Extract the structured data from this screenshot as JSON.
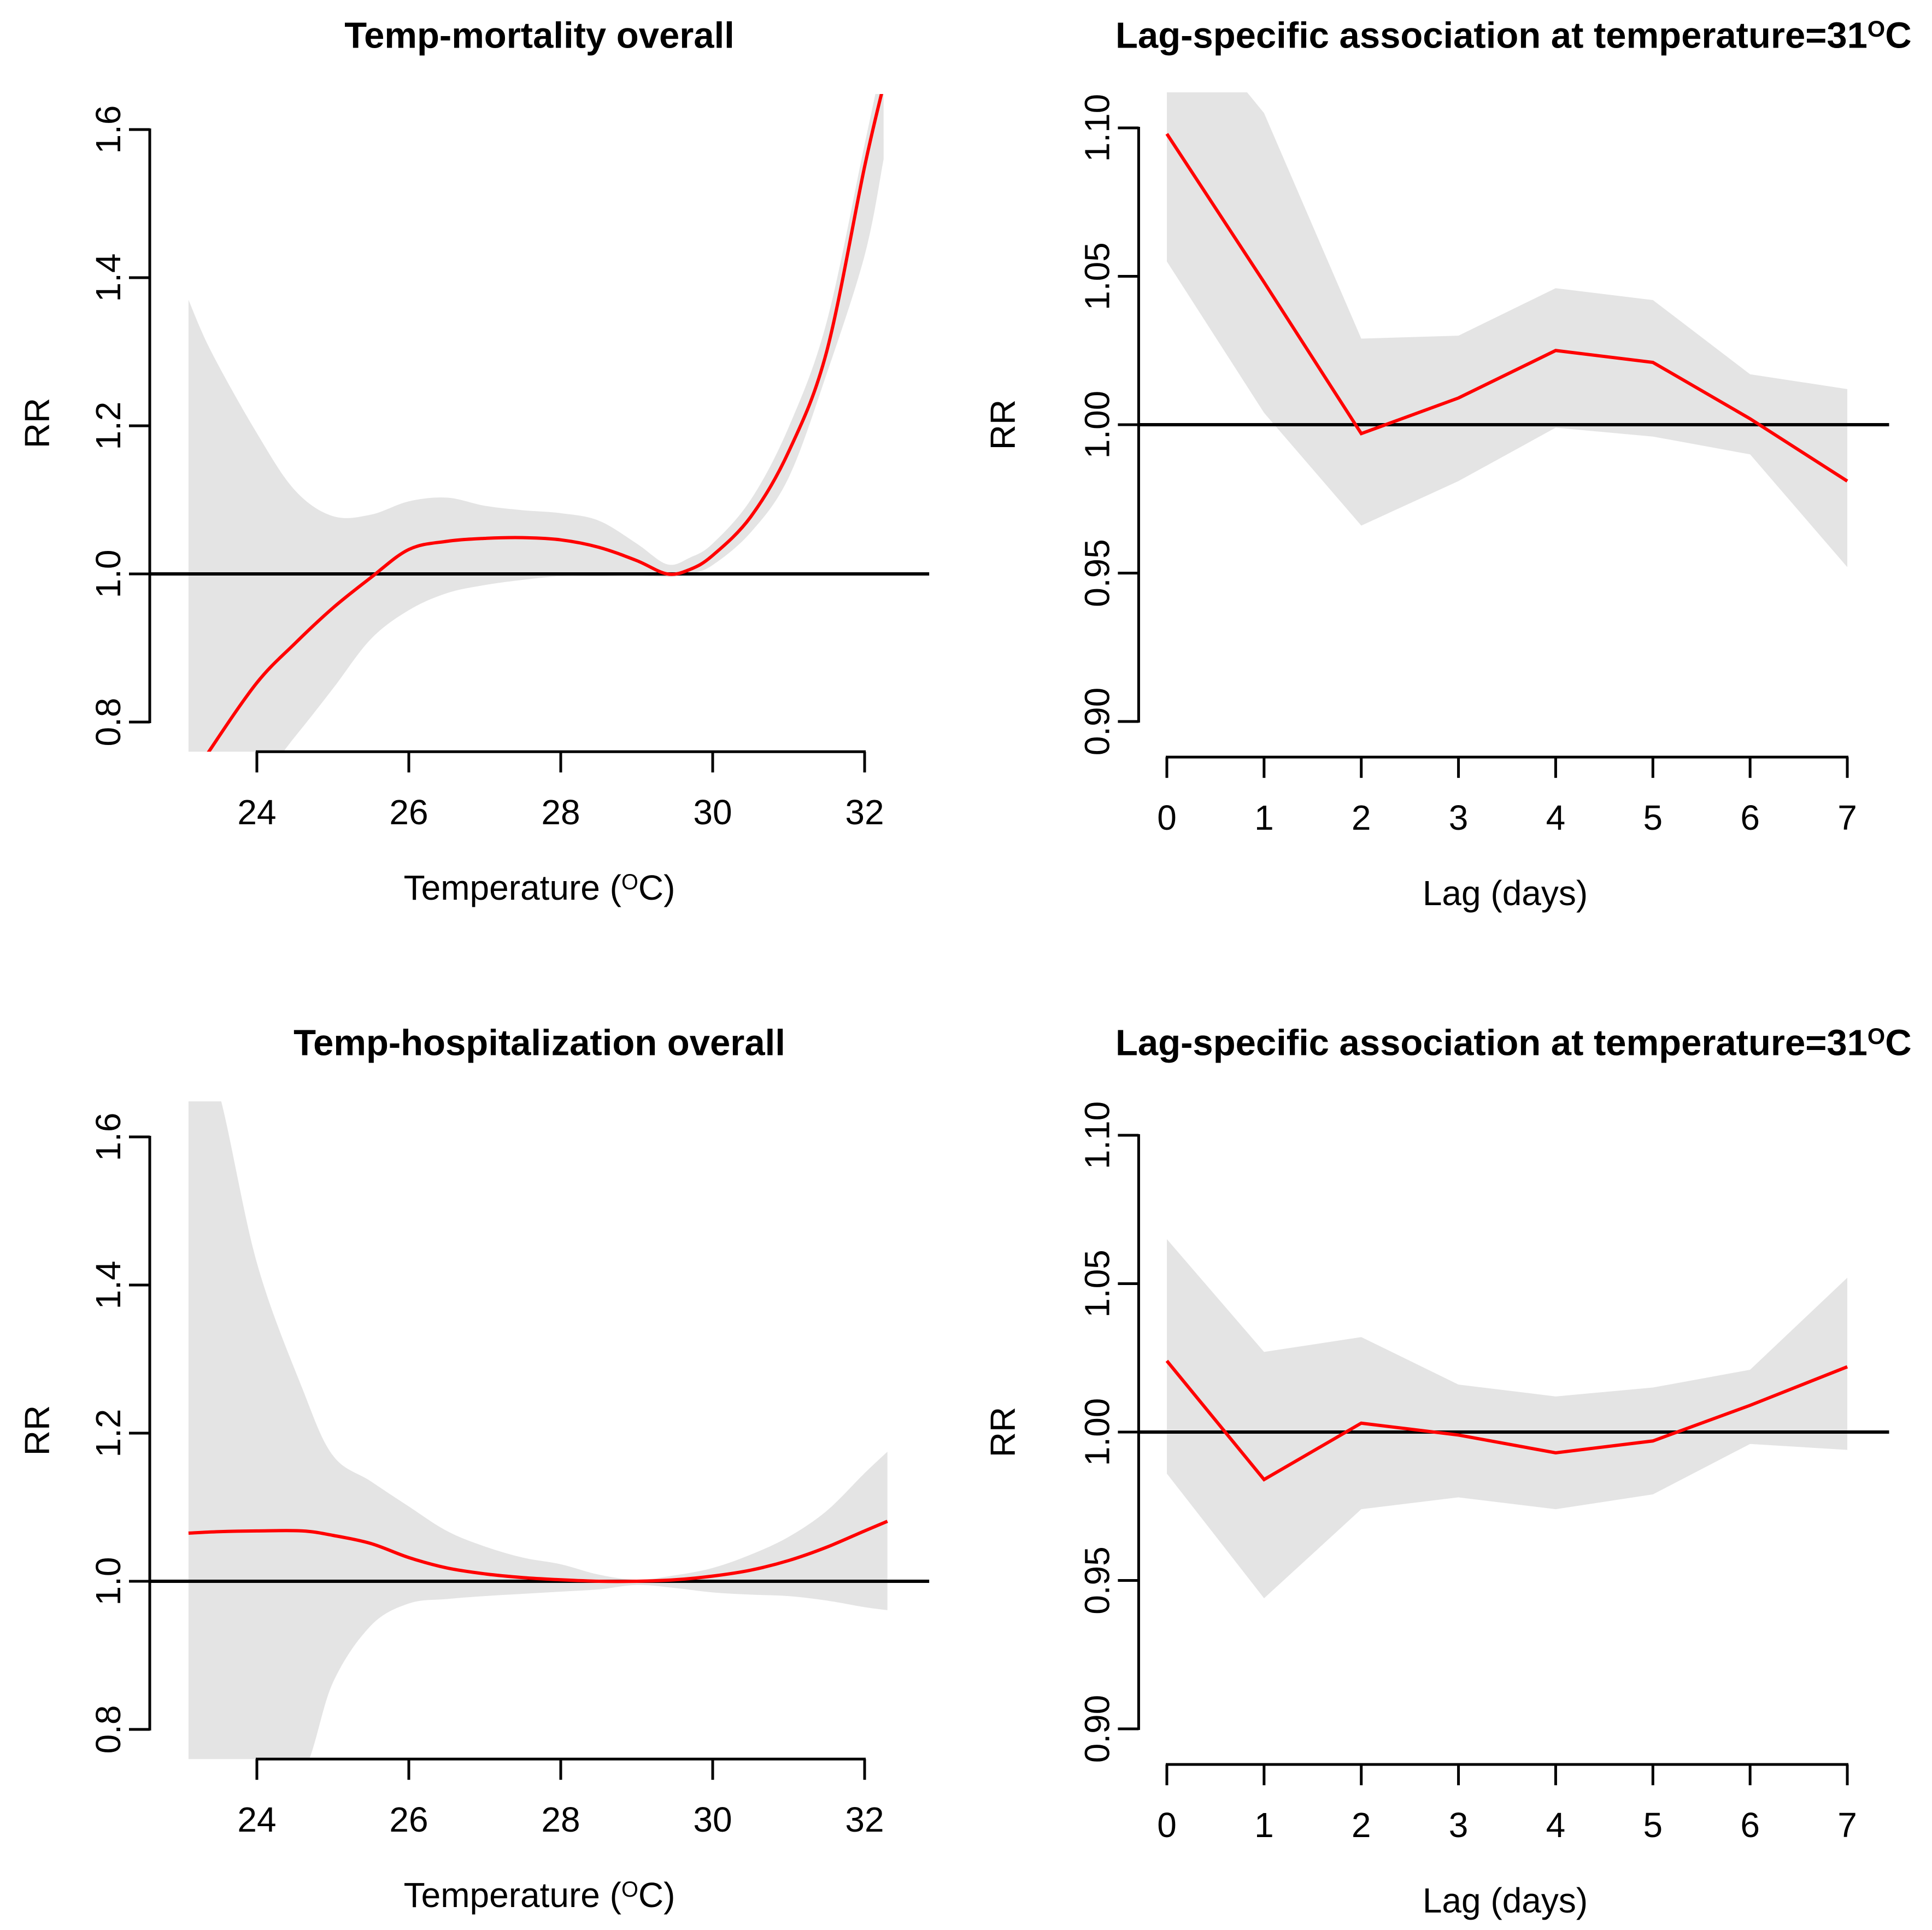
{
  "figure": {
    "background": "#FFFFFF"
  },
  "colors": {
    "estimate_line": "#FF0000",
    "confidence_band": "#E4E4E4",
    "reference_line": "#000000",
    "axis": "#000000",
    "text": "#000000"
  },
  "chart_data": [
    {
      "type": "line",
      "panel": "top-left",
      "title_pre": "Temp-mortality overall",
      "title_sup": "",
      "title_post": "",
      "xlabel_pre": "Temperature (",
      "xlabel_sup": "O",
      "xlabel_post": "C)",
      "ylabel": "RR",
      "legend": "none",
      "grid": false,
      "smooth": true,
      "ref_line_y": 1.0,
      "xlim": [
        22.59,
        32.85
      ],
      "ylim": [
        0.76,
        1.648
      ],
      "xticks": {
        "values": [
          24,
          26,
          28,
          30,
          32
        ],
        "labels": [
          "24",
          "26",
          "28",
          "30",
          "32"
        ]
      },
      "yticks": {
        "values": [
          0.8,
          1.0,
          1.2,
          1.4,
          1.6
        ],
        "labels": [
          "0.8",
          "1.0",
          "1.2",
          "1.4",
          "1.6"
        ]
      },
      "x": [
        23.1,
        23.4,
        24.0,
        24.5,
        25.0,
        25.5,
        26.0,
        26.5,
        27.0,
        27.5,
        28.0,
        28.5,
        29.0,
        29.4,
        29.7,
        30.0,
        30.5,
        31.0,
        31.5,
        32.0,
        32.25
      ],
      "estimate": [
        0.715,
        0.765,
        0.853,
        0.906,
        0.954,
        0.995,
        1.033,
        1.044,
        1.048,
        1.049,
        1.046,
        1.036,
        1.018,
        1.0,
        1.006,
        1.025,
        1.077,
        1.165,
        1.3,
        1.55,
        1.66
      ],
      "ci_upper": [
        1.37,
        1.3,
        1.19,
        1.113,
        1.078,
        1.08,
        1.098,
        1.103,
        1.092,
        1.086,
        1.082,
        1.072,
        1.041,
        1.013,
        1.022,
        1.041,
        1.1,
        1.198,
        1.34,
        1.58,
        1.7
      ],
      "ci_lower": [
        0.69,
        0.7,
        0.72,
        0.78,
        0.845,
        0.912,
        0.951,
        0.974,
        0.985,
        0.992,
        0.997,
        0.997,
        0.998,
        0.996,
        1.0,
        1.012,
        1.056,
        1.13,
        1.27,
        1.43,
        1.56
      ]
    },
    {
      "type": "line",
      "panel": "top-right",
      "title_pre": "Lag-specific association at temperature=31",
      "title_sup": "O",
      "title_post": "C",
      "xlabel_pre": "Lag (days)",
      "xlabel_sup": "",
      "xlabel_post": "",
      "ylabel": "RR",
      "legend": "none",
      "grid": false,
      "smooth": false,
      "ref_line_y": 1.0,
      "xlim": [
        -0.29,
        7.43
      ],
      "ylim": [
        0.888,
        1.112
      ],
      "xticks": {
        "values": [
          0,
          1,
          2,
          3,
          4,
          5,
          6,
          7
        ],
        "labels": [
          "0",
          "1",
          "2",
          "3",
          "4",
          "5",
          "6",
          "7"
        ]
      },
      "yticks": {
        "values": [
          0.9,
          0.95,
          1.0,
          1.05,
          1.1
        ],
        "labels": [
          "0.90",
          "0.95",
          "1.00",
          "1.05",
          "1.10"
        ]
      },
      "x": [
        0,
        1,
        2,
        3,
        4,
        5,
        6,
        7
      ],
      "estimate": [
        1.098,
        1.048,
        0.997,
        1.009,
        1.025,
        1.021,
        1.002,
        0.981
      ],
      "ci_upper": [
        1.145,
        1.105,
        1.029,
        1.03,
        1.046,
        1.042,
        1.017,
        1.012
      ],
      "ci_lower": [
        1.055,
        1.004,
        0.966,
        0.981,
        0.999,
        0.996,
        0.99,
        0.952
      ]
    },
    {
      "type": "line",
      "panel": "bottom-left",
      "title_pre": "Temp-hospitalization overall",
      "title_sup": "",
      "title_post": "",
      "xlabel_pre": "Temperature (",
      "xlabel_sup": "O",
      "xlabel_post": "C)",
      "ylabel": "RR",
      "legend": "none",
      "grid": false,
      "smooth": true,
      "ref_line_y": 1.0,
      "xlim": [
        22.59,
        32.85
      ],
      "ylim": [
        0.76,
        1.648
      ],
      "xticks": {
        "values": [
          24,
          26,
          28,
          30,
          32
        ],
        "labels": [
          "24",
          "26",
          "28",
          "30",
          "32"
        ]
      },
      "yticks": {
        "values": [
          0.8,
          1.0,
          1.2,
          1.4,
          1.6
        ],
        "labels": [
          "0.8",
          "1.0",
          "1.2",
          "1.4",
          "1.6"
        ]
      },
      "x": [
        23.1,
        23.5,
        24.0,
        24.6,
        25.0,
        25.5,
        26.0,
        26.5,
        27.0,
        27.5,
        28.0,
        28.5,
        29.0,
        29.5,
        30.0,
        30.5,
        31.0,
        31.5,
        32.0,
        32.3
      ],
      "estimate": [
        1.065,
        1.067,
        1.068,
        1.068,
        1.062,
        1.051,
        1.032,
        1.018,
        1.01,
        1.005,
        1.002,
        1.0,
        1.0,
        1.002,
        1.007,
        1.015,
        1.028,
        1.046,
        1.068,
        1.081
      ],
      "ci_upper": [
        1.76,
        1.66,
        1.43,
        1.26,
        1.17,
        1.135,
        1.101,
        1.068,
        1.047,
        1.032,
        1.023,
        1.009,
        1.002,
        1.008,
        1.018,
        1.036,
        1.06,
        1.095,
        1.146,
        1.175
      ],
      "ci_lower": [
        0.69,
        0.695,
        0.7,
        0.74,
        0.863,
        0.94,
        0.97,
        0.976,
        0.98,
        0.983,
        0.986,
        0.989,
        0.995,
        0.991,
        0.985,
        0.982,
        0.98,
        0.974,
        0.965,
        0.961
      ]
    },
    {
      "type": "line",
      "panel": "bottom-right",
      "title_pre": "Lag-specific association at temperature=31",
      "title_sup": "O",
      "title_post": "C",
      "xlabel_pre": "Lag (days)",
      "xlabel_sup": "",
      "xlabel_post": "",
      "ylabel": "RR",
      "legend": "none",
      "grid": false,
      "smooth": false,
      "ref_line_y": 1.0,
      "xlim": [
        -0.29,
        7.43
      ],
      "ylim": [
        0.888,
        1.112
      ],
      "xticks": {
        "values": [
          0,
          1,
          2,
          3,
          4,
          5,
          6,
          7
        ],
        "labels": [
          "0",
          "1",
          "2",
          "3",
          "4",
          "5",
          "6",
          "7"
        ]
      },
      "yticks": {
        "values": [
          0.9,
          0.95,
          1.0,
          1.05,
          1.1
        ],
        "labels": [
          "0.90",
          "0.95",
          "1.00",
          "1.05",
          "1.10"
        ]
      },
      "x": [
        0,
        1,
        2,
        3,
        4,
        5,
        6,
        7
      ],
      "estimate": [
        1.024,
        0.984,
        1.003,
        0.999,
        0.993,
        0.997,
        1.009,
        1.022
      ],
      "ci_upper": [
        1.065,
        1.027,
        1.032,
        1.016,
        1.012,
        1.015,
        1.021,
        1.052
      ],
      "ci_lower": [
        0.986,
        0.944,
        0.974,
        0.978,
        0.974,
        0.979,
        0.996,
        0.994
      ]
    }
  ]
}
